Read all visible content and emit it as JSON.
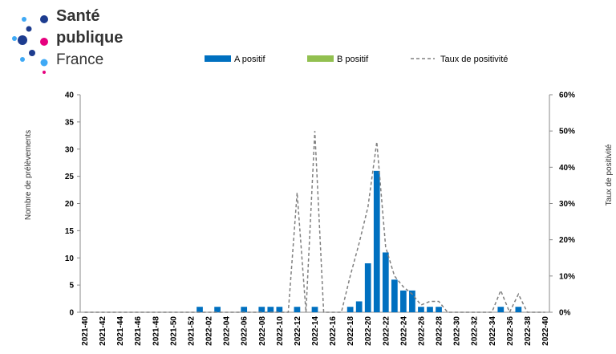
{
  "logo": {
    "lines": [
      "Santé",
      "publique",
      "France"
    ]
  },
  "chart_data": {
    "type": "bar",
    "y_label": "Nombre de prélèvements",
    "y2_label": "Taux de positivité",
    "categories": [
      "2021-40",
      null,
      "2021-42",
      null,
      "2021-44",
      null,
      "2021-46",
      null,
      "2021-48",
      null,
      "2021-50",
      null,
      "2021-52",
      null,
      "2022-02",
      null,
      "2022-04",
      null,
      "2022-06",
      null,
      "2022-08",
      null,
      "2022-10",
      null,
      "2022-12",
      null,
      "2022-14",
      null,
      "2022-16",
      null,
      "2022-18",
      null,
      "2022-20",
      null,
      "2022-22",
      null,
      "2022-24",
      null,
      "2022-26",
      null,
      "2022-28",
      null,
      "2022-30",
      null,
      "2022-32",
      null,
      "2022-34",
      null,
      "2022-36",
      null,
      "2022-38",
      null,
      "2022-40"
    ],
    "series": [
      {
        "name": "A positif",
        "color": "#0070c0",
        "values": [
          0,
          0,
          0,
          0,
          0,
          0,
          0,
          0,
          0,
          0,
          0,
          0,
          0,
          1,
          0,
          1,
          0,
          0,
          1,
          0,
          1,
          1,
          1,
          0,
          1,
          0,
          1,
          0,
          0,
          0,
          1,
          2,
          9,
          26,
          11,
          6,
          4,
          4,
          1,
          1,
          1,
          0,
          0,
          0,
          0,
          0,
          0,
          1,
          0,
          1,
          0,
          0,
          0
        ]
      },
      {
        "name": "B positif",
        "color": "#92c050",
        "values": [
          0,
          0,
          0,
          0,
          0,
          0,
          0,
          0,
          0,
          0,
          0,
          0,
          0,
          0,
          0,
          0,
          0,
          0,
          0,
          0,
          0,
          0,
          0,
          0,
          0,
          0,
          0,
          0,
          0,
          0,
          0,
          0,
          0,
          0,
          0,
          0,
          0,
          0,
          0,
          0,
          0,
          0,
          0,
          0,
          0,
          0,
          0,
          0,
          0,
          0,
          0,
          0,
          0
        ]
      },
      {
        "name": "Taux de positivité",
        "color": "#808080",
        "type": "line",
        "axis": "y2",
        "dashed": true,
        "values": [
          0,
          0,
          0,
          0,
          0,
          0,
          0,
          0,
          0,
          0,
          0,
          0,
          0,
          0,
          0,
          0,
          0,
          0,
          0,
          0,
          0,
          0,
          0,
          0,
          33,
          0,
          50,
          0,
          0,
          0,
          10,
          19,
          29,
          47,
          18,
          10,
          7,
          5,
          2,
          3,
          3,
          0,
          0,
          0,
          0,
          0,
          0,
          6,
          0,
          5,
          0,
          0,
          0
        ]
      }
    ],
    "ylim": [
      0,
      40
    ],
    "yticks": [
      0,
      5,
      10,
      15,
      20,
      25,
      30,
      35,
      40
    ],
    "y2lim": [
      0,
      60
    ],
    "y2ticks": [
      {
        "value": 0,
        "label": "0%"
      },
      {
        "value": 10,
        "label": "10%"
      },
      {
        "value": 20,
        "label": "20%"
      },
      {
        "value": 30,
        "label": "30%"
      },
      {
        "value": 40,
        "label": "40%"
      },
      {
        "value": 50,
        "label": "50%"
      },
      {
        "value": 60,
        "label": "60%"
      }
    ],
    "stacked": true
  }
}
